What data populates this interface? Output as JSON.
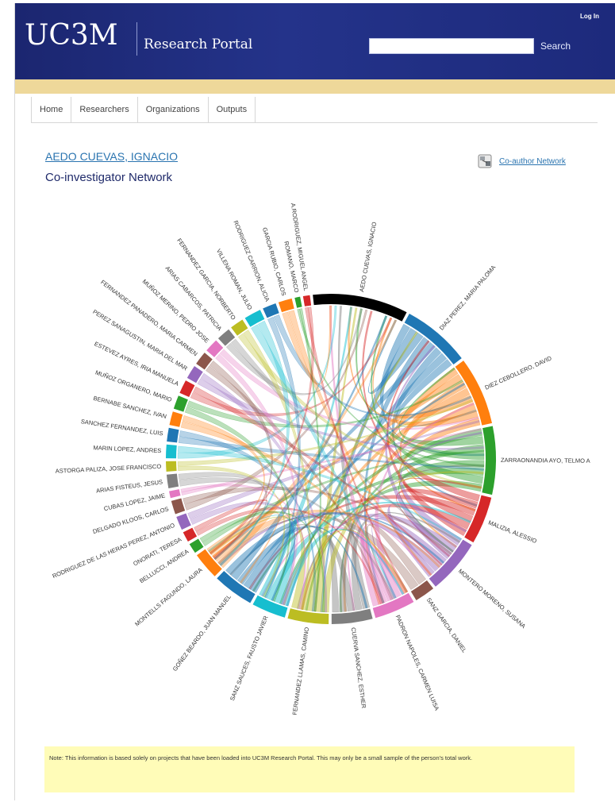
{
  "header": {
    "logo": "UC3M",
    "portal_name": "Research Portal",
    "login_label": "Log In",
    "search": {
      "value": "",
      "placeholder": "",
      "button_label": "Search"
    }
  },
  "nav": {
    "items": [
      {
        "label": "Home"
      },
      {
        "label": "Researchers"
      },
      {
        "label": "Organizations"
      },
      {
        "label": "Outputs"
      }
    ]
  },
  "main": {
    "person_name": "AEDO CUEVAS, IGNACIO",
    "subtitle": "Co-investigator Network",
    "coauthor_link": "Co-author Network"
  },
  "note": "Note: This information is based solely on projects that have been loaded into UC3M Research Portal. This may only be a small sample of the person's total work.",
  "chord": {
    "nodes": [
      {
        "name": "AEDO CUEVAS, IGNACIO",
        "color": "#000000",
        "value": 14
      },
      {
        "name": "DIAZ PEREZ, MARIA PALOMA",
        "color": "#1f77b4",
        "value": 10
      },
      {
        "name": "DIEZ CEBOLLERO, DAVID",
        "color": "#ff7f0e",
        "value": 10
      },
      {
        "name": "ZARRAONANDIA AYO, TELMO A",
        "color": "#2ca02c",
        "value": 10
      },
      {
        "name": "MALIZIA, ALESSIO",
        "color": "#d62728",
        "value": 7
      },
      {
        "name": "MONTERO MORENO, SUSANA",
        "color": "#9467bd",
        "value": 8
      },
      {
        "name": "SANZ GARCIA, DANIEL",
        "color": "#8c564b",
        "value": 3
      },
      {
        "name": "PADRON NAPOLES, CARMEN LUISA",
        "color": "#e377c2",
        "value": 6
      },
      {
        "name": "CUERVA SANCHEZ, ESTHER",
        "color": "#7f7f7f",
        "value": 6
      },
      {
        "name": "FERNANDEZ LLAMAS, CAMINO",
        "color": "#bcbd22",
        "value": 6
      },
      {
        "name": "SANZ SAUCES, FAUSTO JAVIER",
        "color": "#17becf",
        "value": 5
      },
      {
        "name": "GOÑEZ BEARDO, JUAN MANUEL",
        "color": "#1f77b4",
        "value": 6
      },
      {
        "name": "MONTELLS FAGUNDO, LAURA",
        "color": "#ff7f0e",
        "value": 4
      },
      {
        "name": "BELLUCCI, ANDREA",
        "color": "#2ca02c",
        "value": 1.5
      },
      {
        "name": "ONORATI, TERESA",
        "color": "#d62728",
        "value": 1.5
      },
      {
        "name": "RODRIGUEZ DE LAS HERAS PEREZ, ANTONIO",
        "color": "#9467bd",
        "value": 2
      },
      {
        "name": "DELGADO KLOOS, CARLOS",
        "color": "#8c564b",
        "value": 2
      },
      {
        "name": "CUBAS LOPEZ, JAIME",
        "color": "#e377c2",
        "value": 1
      },
      {
        "name": "ARIAS FISTEUS, JESUS",
        "color": "#7f7f7f",
        "value": 2
      },
      {
        "name": "ASTORGA PALIZA, JOSE FRANCISCO",
        "color": "#bcbd22",
        "value": 1.5
      },
      {
        "name": "MARIN LOPEZ, ANDRES",
        "color": "#17becf",
        "value": 2
      },
      {
        "name": "SANCHEZ FERNANDEZ, LUIS",
        "color": "#1f77b4",
        "value": 2
      },
      {
        "name": "BERNABE SANCHEZ, IVAN",
        "color": "#ff7f0e",
        "value": 2
      },
      {
        "name": "MUÑOZ ORGANERO, MARIO",
        "color": "#2ca02c",
        "value": 2
      },
      {
        "name": "ESTEVEZ AYRES, IRIA MANUELA",
        "color": "#d62728",
        "value": 2
      },
      {
        "name": "PEREZ SANAGUSTIN, MARIA DEL MAR",
        "color": "#9467bd",
        "value": 2
      },
      {
        "name": "FERNANDEZ PANADERO, MARIA CARMEN",
        "color": "#8c564b",
        "value": 2
      },
      {
        "name": "MUÑOZ MERINO, PEDRO JOSE",
        "color": "#e377c2",
        "value": 2
      },
      {
        "name": "ARIAS CABARCOS, PATRICIA",
        "color": "#7f7f7f",
        "value": 2
      },
      {
        "name": "FERNANDEZ GARCIA, NORBERTO",
        "color": "#bcbd22",
        "value": 2
      },
      {
        "name": "VILLENA ROMAN, JULIO",
        "color": "#17becf",
        "value": 2.5
      },
      {
        "name": "RODRIGUEZ CARRION, ALICIA",
        "color": "#1f77b4",
        "value": 2
      },
      {
        "name": "GARCIA RUBIO, CARLOS",
        "color": "#ff7f0e",
        "value": 2
      },
      {
        "name": "ROMANO, MARCO",
        "color": "#2ca02c",
        "value": 0.8
      },
      {
        "name": "A.RODRIGUEZ, MIGUEL ANGEL",
        "color": "#d62728",
        "value": 1
      }
    ]
  }
}
